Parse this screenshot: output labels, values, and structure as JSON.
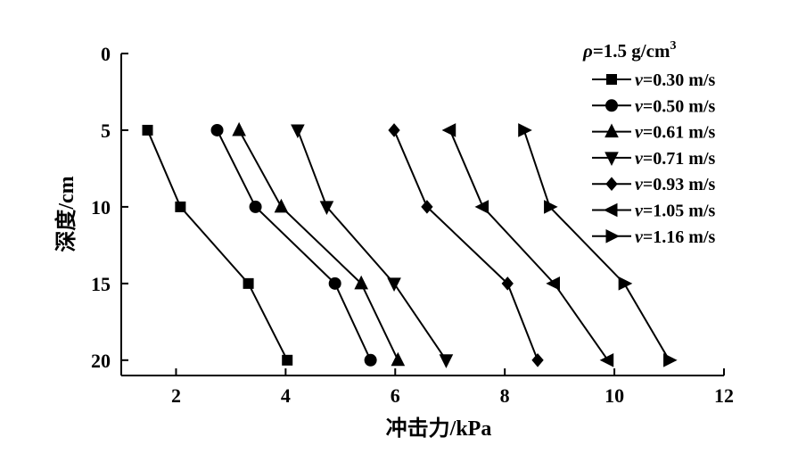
{
  "chart_data": {
    "type": "line",
    "xlabel": "冲击力/kPa",
    "ylabel": "深度/cm",
    "xlim": [
      1,
      12
    ],
    "ylim": [
      0,
      21
    ],
    "y_inverted": true,
    "x_ticks": [
      2,
      4,
      6,
      8,
      10,
      12
    ],
    "y_ticks": [
      0,
      5,
      10,
      15,
      20
    ],
    "grid": false,
    "legend_position": "top-right",
    "legend_title": {
      "symbol": "ρ",
      "text": "=1.5 g/cm",
      "superscript": "3"
    },
    "y": [
      5,
      10,
      15,
      20
    ],
    "series": [
      {
        "name": "v=0.30 m/s",
        "var": "v",
        "label": "=0.30 m/s",
        "marker": "square",
        "x": [
          1.48,
          2.08,
          3.32,
          4.03
        ]
      },
      {
        "name": "v=0.50 m/s",
        "var": "v",
        "label": "=0.50 m/s",
        "marker": "circle",
        "x": [
          2.75,
          3.45,
          4.9,
          5.55
        ]
      },
      {
        "name": "v=0.61 m/s",
        "var": "v",
        "label": "=0.61 m/s",
        "marker": "triangle-up",
        "x": [
          3.15,
          3.92,
          5.38,
          6.05
        ]
      },
      {
        "name": "v=0.71 m/s",
        "var": "v",
        "label": "=0.71 m/s",
        "marker": "triangle-down",
        "x": [
          4.22,
          4.75,
          5.98,
          6.93
        ]
      },
      {
        "name": "v=0.93 m/s",
        "var": "v",
        "label": "=0.93 m/s",
        "marker": "diamond",
        "x": [
          5.98,
          6.58,
          8.05,
          8.6
        ]
      },
      {
        "name": "v=1.05 m/s",
        "var": "v",
        "label": "=1.05 m/s",
        "marker": "triangle-left",
        "x": [
          7.0,
          7.6,
          8.9,
          9.88
        ]
      },
      {
        "name": "v=1.16 m/s",
        "var": "v",
        "label": "=1.16 m/s",
        "marker": "triangle-right",
        "x": [
          8.35,
          8.82,
          10.18,
          11.0
        ]
      }
    ]
  }
}
